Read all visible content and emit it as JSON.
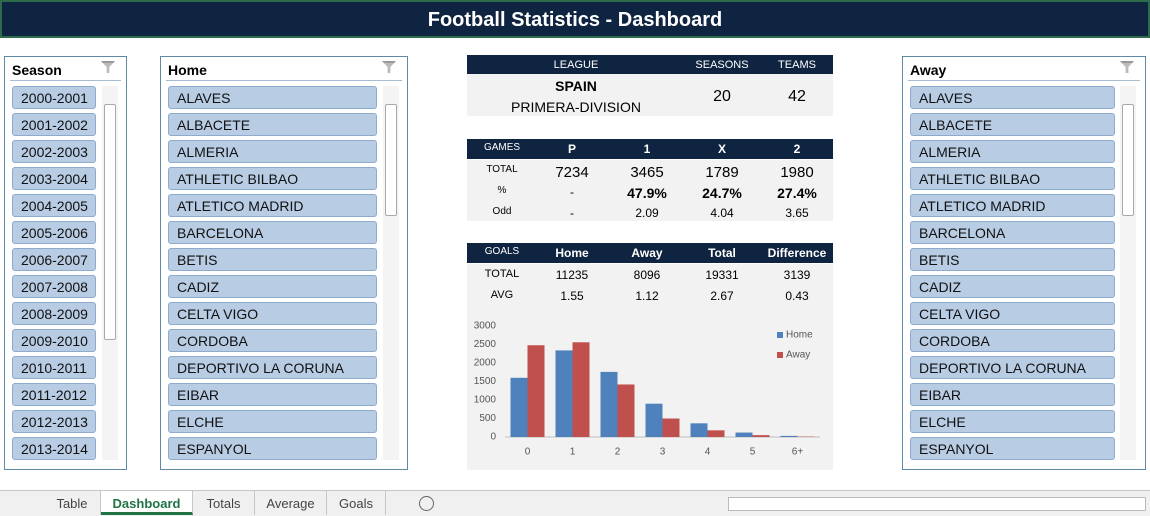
{
  "title": "Football Statistics - Dashboard",
  "slicers": [
    {
      "title": "Season",
      "items": [
        "2000-2001",
        "2001-2002",
        "2002-2003",
        "2003-2004",
        "2004-2005",
        "2005-2006",
        "2006-2007",
        "2007-2008",
        "2008-2009",
        "2009-2010",
        "2010-2011",
        "2011-2012",
        "2012-2013",
        "2013-2014"
      ]
    },
    {
      "title": "Home",
      "items": [
        "ALAVES",
        "ALBACETE",
        "ALMERIA",
        "ATHLETIC BILBAO",
        "ATLETICO MADRID",
        "BARCELONA",
        "BETIS",
        "CADIZ",
        "CELTA VIGO",
        "CORDOBA",
        "DEPORTIVO LA CORUNA",
        "EIBAR",
        "ELCHE",
        "ESPANYOL"
      ]
    },
    {
      "title": "Away",
      "items": [
        "ALAVES",
        "ALBACETE",
        "ALMERIA",
        "ATHLETIC BILBAO",
        "ATLETICO MADRID",
        "BARCELONA",
        "BETIS",
        "CADIZ",
        "CELTA VIGO",
        "CORDOBA",
        "DEPORTIVO LA CORUNA",
        "EIBAR",
        "ELCHE",
        "ESPANYOL"
      ]
    }
  ],
  "league_table": {
    "headers": [
      "LEAGUE",
      "SEASONS",
      "TEAMS"
    ],
    "league": "SPAIN",
    "division": "PRIMERA-DIVISION",
    "seasons": 20,
    "teams": 42
  },
  "games_table": {
    "headers": [
      "GAMES",
      "P",
      "1",
      "X",
      "2"
    ],
    "rows": [
      [
        "TOTAL",
        7234,
        3465,
        1789,
        1980
      ],
      [
        "%",
        "-",
        "47.9%",
        "24.7%",
        "27.4%"
      ],
      [
        "Odd",
        "-",
        2.09,
        4.04,
        3.65
      ]
    ]
  },
  "goals_table": {
    "headers": [
      "GOALS",
      "Home",
      "Away",
      "Total",
      "Difference"
    ],
    "rows": [
      [
        "TOTAL",
        11235,
        8096,
        19331,
        3139
      ],
      [
        "AVG",
        1.55,
        1.12,
        2.67,
        0.43
      ]
    ]
  },
  "chart": {
    "type": "bar",
    "categories": [
      "0",
      "1",
      "2",
      "3",
      "4",
      "5",
      "6+"
    ],
    "series": [
      {
        "name": "Home",
        "color": "#4f81bd",
        "values": [
          1600,
          2340,
          1760,
          900,
          370,
          120,
          30
        ]
      },
      {
        "name": "Away",
        "color": "#c0504d",
        "values": [
          2480,
          2560,
          1420,
          500,
          180,
          50,
          10
        ]
      }
    ],
    "ylim": [
      0,
      3000
    ],
    "yticks": [
      0,
      500,
      1000,
      1500,
      2000,
      2500,
      3000
    ],
    "legend": "top-right"
  },
  "tabs": [
    "Table",
    "Dashboard",
    "Totals",
    "Average",
    "Goals"
  ],
  "active_tab": 1
}
